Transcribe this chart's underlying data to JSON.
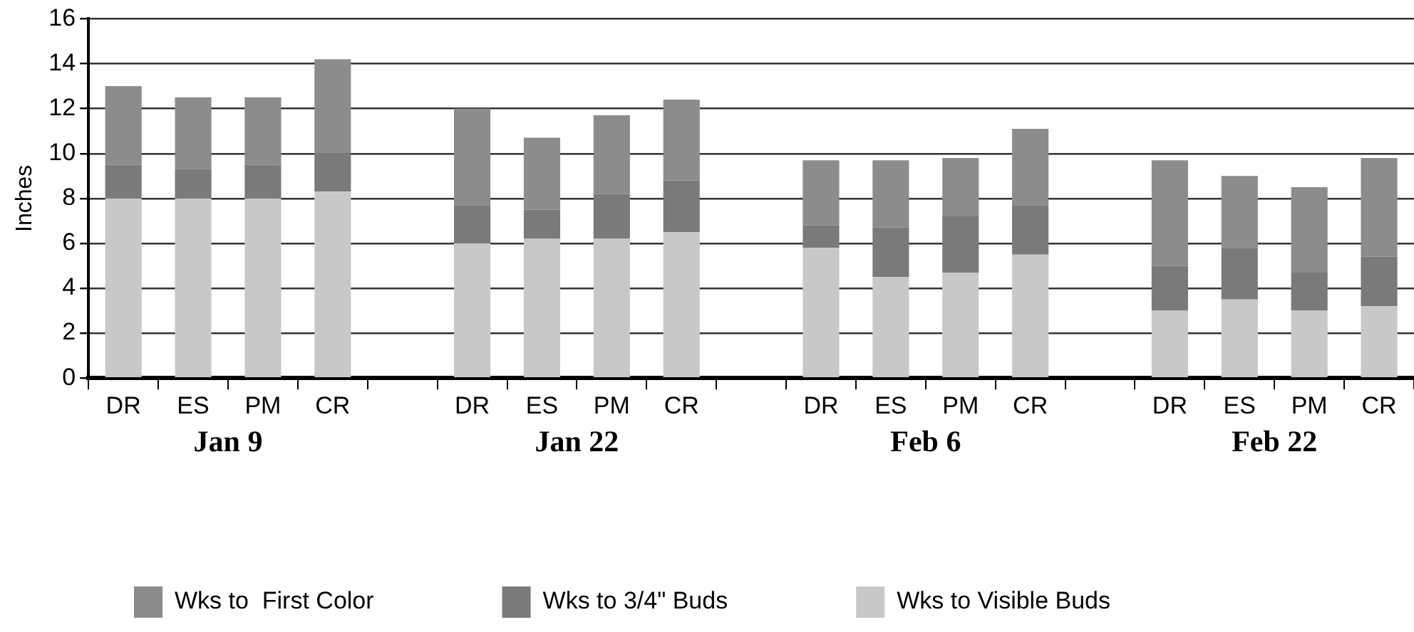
{
  "chart_data": {
    "type": "bar",
    "stacked": true,
    "ylabel": "Inches",
    "categories": [
      "DR",
      "ES",
      "PM",
      "CR",
      null,
      "DR",
      "ES",
      "PM",
      "CR",
      null,
      "DR",
      "ES",
      "PM",
      "CR",
      null,
      "DR",
      "ES",
      "PM",
      "CR"
    ],
    "series": [
      {
        "name": "Wks to Visible Buds",
        "color": "#c8c8c8",
        "values": [
          8,
          8,
          8,
          8.3,
          null,
          6,
          6.2,
          6.2,
          6.5,
          null,
          5.8,
          4.5,
          4.7,
          5.5,
          null,
          3,
          3.5,
          3,
          3.2
        ]
      },
      {
        "name": "Wks to 3/4\" Buds",
        "color": "#7a7a7a",
        "values": [
          1.5,
          1.3,
          1.5,
          1.7,
          null,
          1.7,
          1.3,
          2,
          2.3,
          null,
          1,
          2.2,
          2.5,
          2.2,
          null,
          2,
          2.3,
          1.7,
          2.2
        ]
      },
      {
        "name": "Wks to  First Color",
        "color": "#8c8c8c",
        "values": [
          3.5,
          3.2,
          3,
          4.2,
          null,
          4.3,
          3.2,
          3.5,
          3.6,
          null,
          2.9,
          3,
          2.6,
          3.4,
          null,
          4.7,
          3.2,
          3.8,
          4.4
        ]
      }
    ],
    "annotations": [
      "Jan 9",
      "Jan 22",
      "Feb 6",
      "Feb 22"
    ],
    "ylim": [
      0,
      16
    ],
    "yticks": [
      0,
      2,
      4,
      6,
      8,
      10,
      12,
      14,
      16
    ],
    "grid": "y",
    "legend": "bottom"
  }
}
